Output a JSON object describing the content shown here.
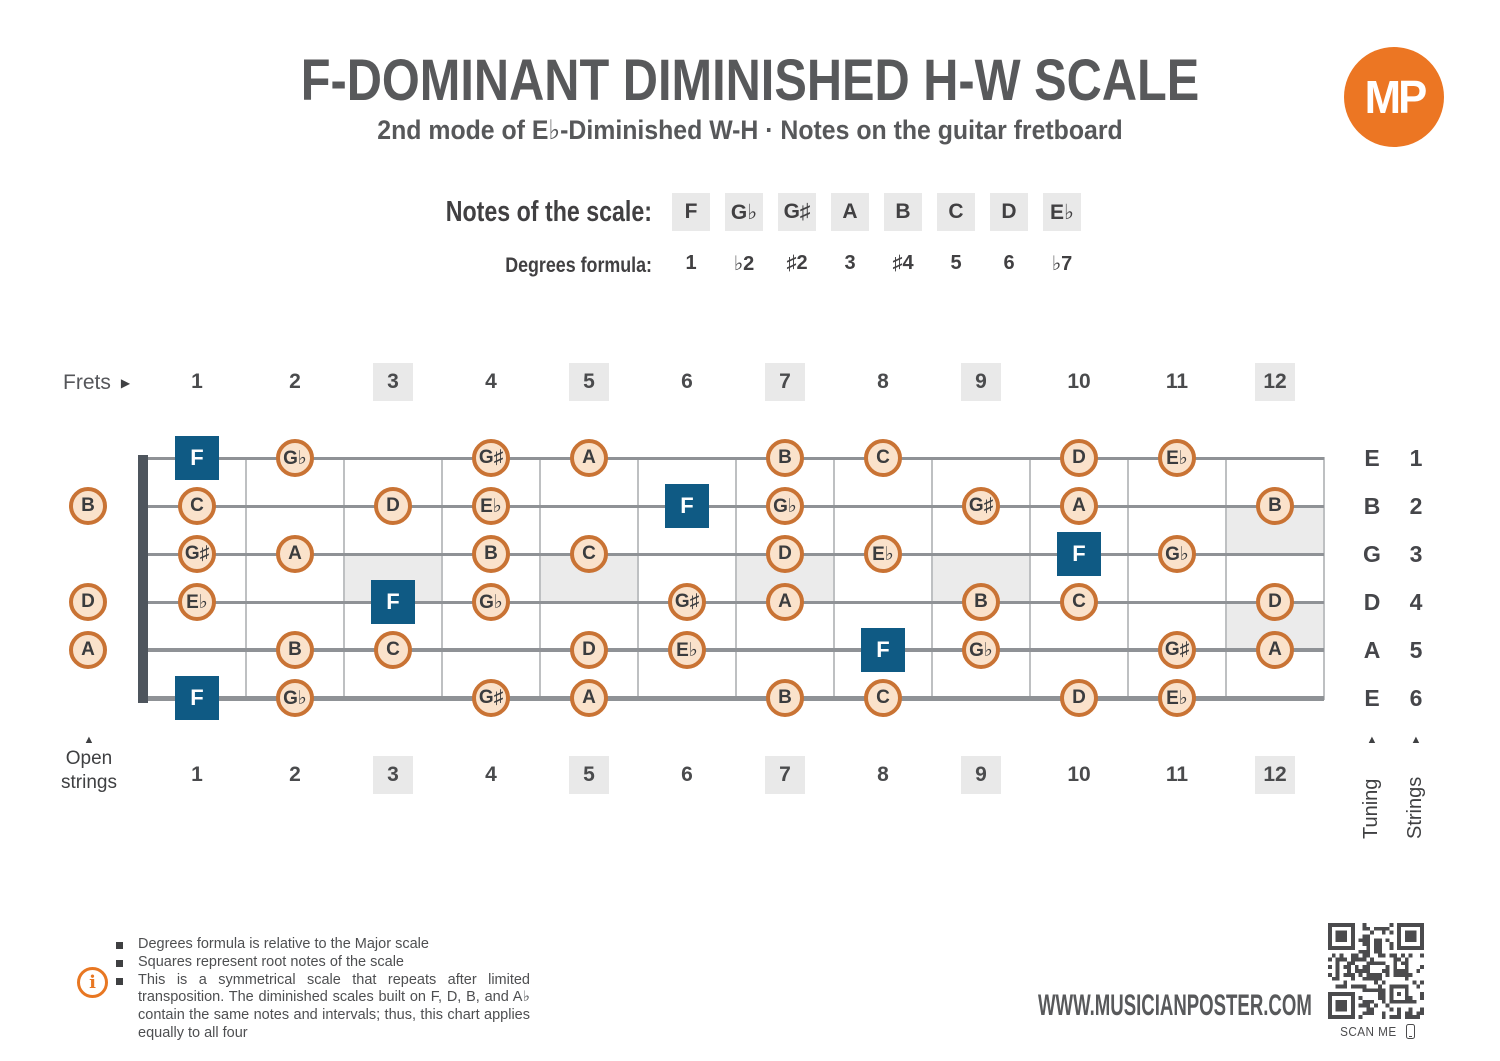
{
  "brand": {
    "logo_text": "MP"
  },
  "header": {
    "title": "F-DOMINANT DIMINISHED H-W SCALE",
    "subtitle": "2nd mode of E♭-Diminished W-H · Notes on the guitar fretboard"
  },
  "scale": {
    "notes_label": "Notes of the scale:",
    "degrees_label": "Degrees formula:",
    "notes": [
      "F",
      "G♭",
      "G♯",
      "A",
      "B",
      "C",
      "D",
      "E♭"
    ],
    "degrees": [
      "1",
      "♭2",
      "♯2",
      "3",
      "♯4",
      "5",
      "6",
      "♭7"
    ]
  },
  "fretboard": {
    "frets_label": "Frets",
    "fret_numbers": [
      "1",
      "2",
      "3",
      "4",
      "5",
      "6",
      "7",
      "8",
      "9",
      "10",
      "11",
      "12"
    ],
    "marked_fret_numbers": [
      "3",
      "5",
      "7",
      "9",
      "12"
    ],
    "inlay_frets_single": [
      3,
      5,
      7,
      9
    ],
    "inlay_frets_double": [
      12
    ],
    "open_strings_label": "Open strings",
    "tuning_label": "Tuning",
    "strings_label": "Strings",
    "strings": [
      {
        "tuning": "E",
        "number": "1",
        "open": null,
        "notes": [
          {
            "fret": 1,
            "note": "F",
            "root": true
          },
          {
            "fret": 2,
            "note": "G♭"
          },
          {
            "fret": 4,
            "note": "G♯"
          },
          {
            "fret": 5,
            "note": "A"
          },
          {
            "fret": 7,
            "note": "B"
          },
          {
            "fret": 8,
            "note": "C"
          },
          {
            "fret": 10,
            "note": "D"
          },
          {
            "fret": 11,
            "note": "E♭"
          }
        ]
      },
      {
        "tuning": "B",
        "number": "2",
        "open": "B",
        "notes": [
          {
            "fret": 1,
            "note": "C"
          },
          {
            "fret": 3,
            "note": "D"
          },
          {
            "fret": 4,
            "note": "E♭"
          },
          {
            "fret": 6,
            "note": "F",
            "root": true
          },
          {
            "fret": 7,
            "note": "G♭"
          },
          {
            "fret": 9,
            "note": "G♯"
          },
          {
            "fret": 10,
            "note": "A"
          },
          {
            "fret": 12,
            "note": "B"
          }
        ]
      },
      {
        "tuning": "G",
        "number": "3",
        "open": null,
        "notes": [
          {
            "fret": 1,
            "note": "G♯"
          },
          {
            "fret": 2,
            "note": "A"
          },
          {
            "fret": 4,
            "note": "B"
          },
          {
            "fret": 5,
            "note": "C"
          },
          {
            "fret": 7,
            "note": "D"
          },
          {
            "fret": 8,
            "note": "E♭"
          },
          {
            "fret": 10,
            "note": "F",
            "root": true
          },
          {
            "fret": 11,
            "note": "G♭"
          }
        ]
      },
      {
        "tuning": "D",
        "number": "4",
        "open": "D",
        "notes": [
          {
            "fret": 1,
            "note": "E♭"
          },
          {
            "fret": 3,
            "note": "F",
            "root": true
          },
          {
            "fret": 4,
            "note": "G♭"
          },
          {
            "fret": 6,
            "note": "G♯"
          },
          {
            "fret": 7,
            "note": "A"
          },
          {
            "fret": 9,
            "note": "B"
          },
          {
            "fret": 10,
            "note": "C"
          },
          {
            "fret": 12,
            "note": "D"
          }
        ]
      },
      {
        "tuning": "A",
        "number": "5",
        "open": "A",
        "notes": [
          {
            "fret": 2,
            "note": "B"
          },
          {
            "fret": 3,
            "note": "C"
          },
          {
            "fret": 5,
            "note": "D"
          },
          {
            "fret": 6,
            "note": "E♭"
          },
          {
            "fret": 8,
            "note": "F",
            "root": true
          },
          {
            "fret": 9,
            "note": "G♭"
          },
          {
            "fret": 11,
            "note": "G♯"
          },
          {
            "fret": 12,
            "note": "A"
          }
        ]
      },
      {
        "tuning": "E",
        "number": "6",
        "open": null,
        "notes": [
          {
            "fret": 1,
            "note": "F",
            "root": true
          },
          {
            "fret": 2,
            "note": "G♭"
          },
          {
            "fret": 4,
            "note": "G♯"
          },
          {
            "fret": 5,
            "note": "A"
          },
          {
            "fret": 7,
            "note": "B"
          },
          {
            "fret": 8,
            "note": "C"
          },
          {
            "fret": 10,
            "note": "D"
          },
          {
            "fret": 11,
            "note": "E♭"
          }
        ]
      }
    ]
  },
  "footer": {
    "notes": [
      "Degrees formula is relative to the Major scale",
      "Squares represent root notes of the scale",
      "This is a symmetrical scale that repeats after limited transposition. The diminished scales built on F, D, B, and A♭ contain the same notes and intervals; thus, this chart applies equally to all four"
    ],
    "info_icon": "i",
    "website": "WWW.MUSICIANPOSTER.COM",
    "scan_label": "SCAN ME"
  },
  "colors": {
    "accent_orange": "#EC7623",
    "note_fill": "#FAE2CB",
    "note_border": "#C97334",
    "root_blue": "#0F5A84",
    "chip_gray": "#E9E9E9",
    "text_dark": "#414042",
    "nut": "#4E555D"
  }
}
